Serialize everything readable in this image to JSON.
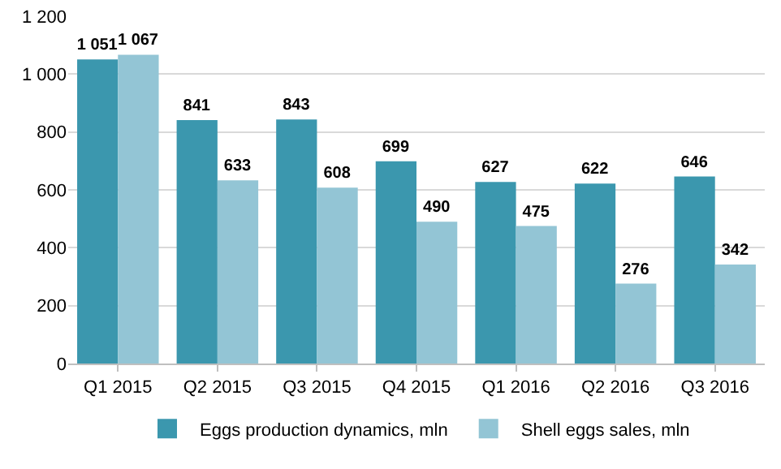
{
  "chart_data": {
    "type": "bar",
    "categories": [
      "Q1 2015",
      "Q2 2015",
      "Q3 2015",
      "Q4 2015",
      "Q1 2016",
      "Q2 2016",
      "Q3 2016"
    ],
    "series": [
      {
        "name": "Eggs production dynamics, mln",
        "color": "#3b97ae",
        "values": [
          1051,
          841,
          843,
          699,
          627,
          622,
          646
        ],
        "value_labels": [
          "1 051",
          "841",
          "843",
          "699",
          "627",
          "622",
          "646"
        ]
      },
      {
        "name": "Shell eggs sales, mln",
        "color": "#93c5d5",
        "values": [
          1067,
          633,
          608,
          490,
          475,
          276,
          342
        ],
        "value_labels": [
          "1 067",
          "633",
          "608",
          "490",
          "475",
          "276",
          "342"
        ]
      }
    ],
    "ylim": [
      0,
      1200
    ],
    "yticks": [
      0,
      200,
      400,
      600,
      800,
      {
        "value": 1000,
        "label": "1 000"
      },
      {
        "value": 1200,
        "label": "1 200"
      }
    ],
    "grid": "y",
    "legend": "bottom"
  }
}
